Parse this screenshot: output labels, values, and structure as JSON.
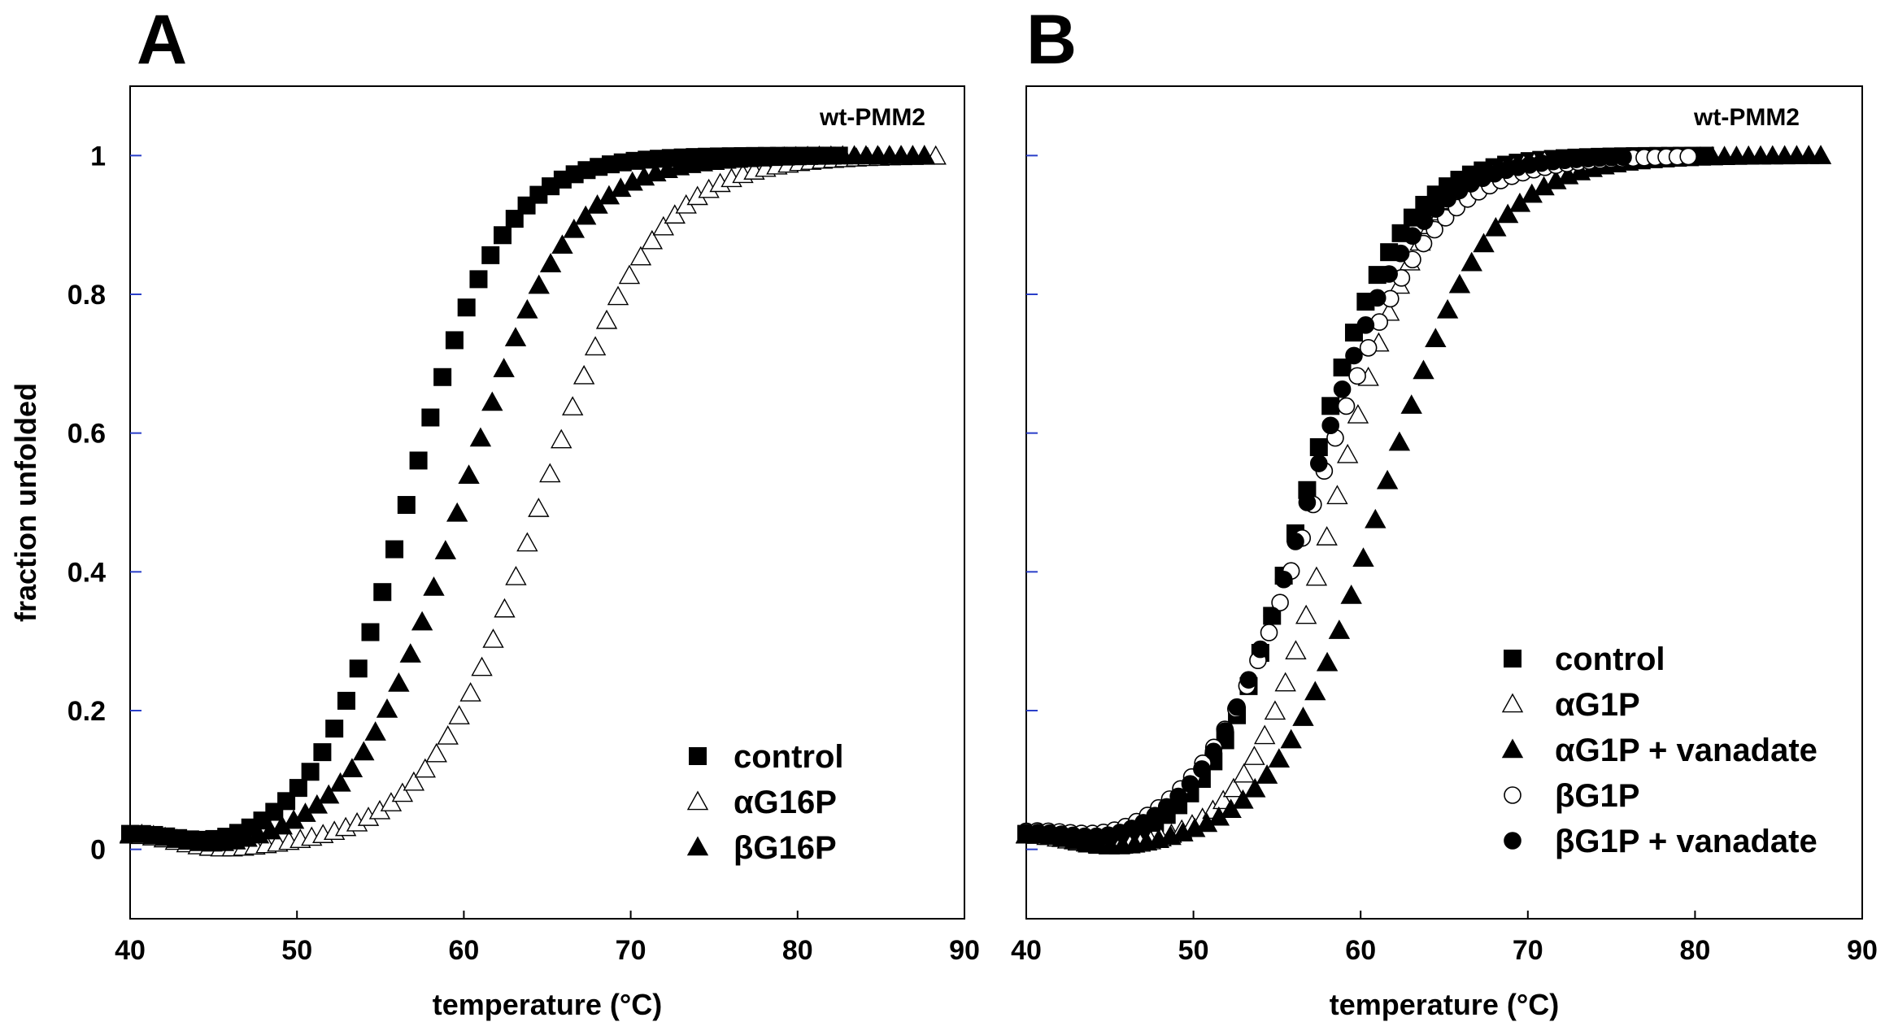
{
  "chart_data": [
    {
      "type": "scatter",
      "panel_label": "A",
      "annotation": "wt-PMM2",
      "xlabel": "temperature (°C)",
      "ylabel": "fraction unfolded",
      "xlim": [
        40,
        90
      ],
      "ylim": [
        -0.1,
        1.1
      ],
      "xticks": [
        "40",
        "50",
        "60",
        "70",
        "80",
        "90"
      ],
      "yticks": [
        "0",
        "0.2",
        "0.4",
        "0.6",
        "0.8",
        "1"
      ],
      "legend": "bottom-right",
      "series": [
        {
          "name": "control",
          "marker": "square-filled",
          "curve": {
            "tm": 56.6,
            "k": 2.8,
            "start": 40,
            "end": 83,
            "step": 0.72
          }
        },
        {
          "name": "αG16P",
          "marker": "triangle-open",
          "curve": {
            "tm": 64.6,
            "k": 3.4,
            "start": 40,
            "end": 88.5,
            "step": 0.68
          }
        },
        {
          "name": "βG16P",
          "marker": "triangle-filled",
          "curve": {
            "tm": 59.8,
            "k": 3.2,
            "start": 40,
            "end": 88,
            "step": 0.7
          }
        }
      ]
    },
    {
      "type": "scatter",
      "panel_label": "B",
      "annotation": "wt-PMM2",
      "xlabel": "temperature (°C)",
      "ylabel": "",
      "xlim": [
        40,
        90
      ],
      "ylim": [
        -0.1,
        1.1
      ],
      "xticks": [
        "40",
        "50",
        "60",
        "70",
        "80",
        "90"
      ],
      "yticks": [],
      "legend": "bottom-right",
      "series": [
        {
          "name": "control",
          "marker": "square-filled",
          "curve": {
            "tm": 56.6,
            "k": 2.8,
            "start": 40,
            "end": 81,
            "step": 0.7
          }
        },
        {
          "name": "αG1P",
          "marker": "triangle-open",
          "curve": {
            "tm": 58.5,
            "k": 2.6,
            "start": 40,
            "end": 71,
            "step": 0.62
          }
        },
        {
          "name": "αG1P + vanadate",
          "marker": "triangle-filled",
          "curve": {
            "tm": 61.2,
            "k": 3.2,
            "start": 40,
            "end": 88,
            "step": 0.72
          }
        },
        {
          "name": "βG1P",
          "marker": "circle-open",
          "curve": {
            "tm": 57.2,
            "k": 3.4,
            "start": 40,
            "end": 80,
            "step": 0.66
          }
        },
        {
          "name": "βG1P + vanadate",
          "marker": "circle-filled",
          "curve": {
            "tm": 56.8,
            "k": 3.1,
            "start": 40,
            "end": 76,
            "step": 0.7
          }
        }
      ]
    }
  ]
}
